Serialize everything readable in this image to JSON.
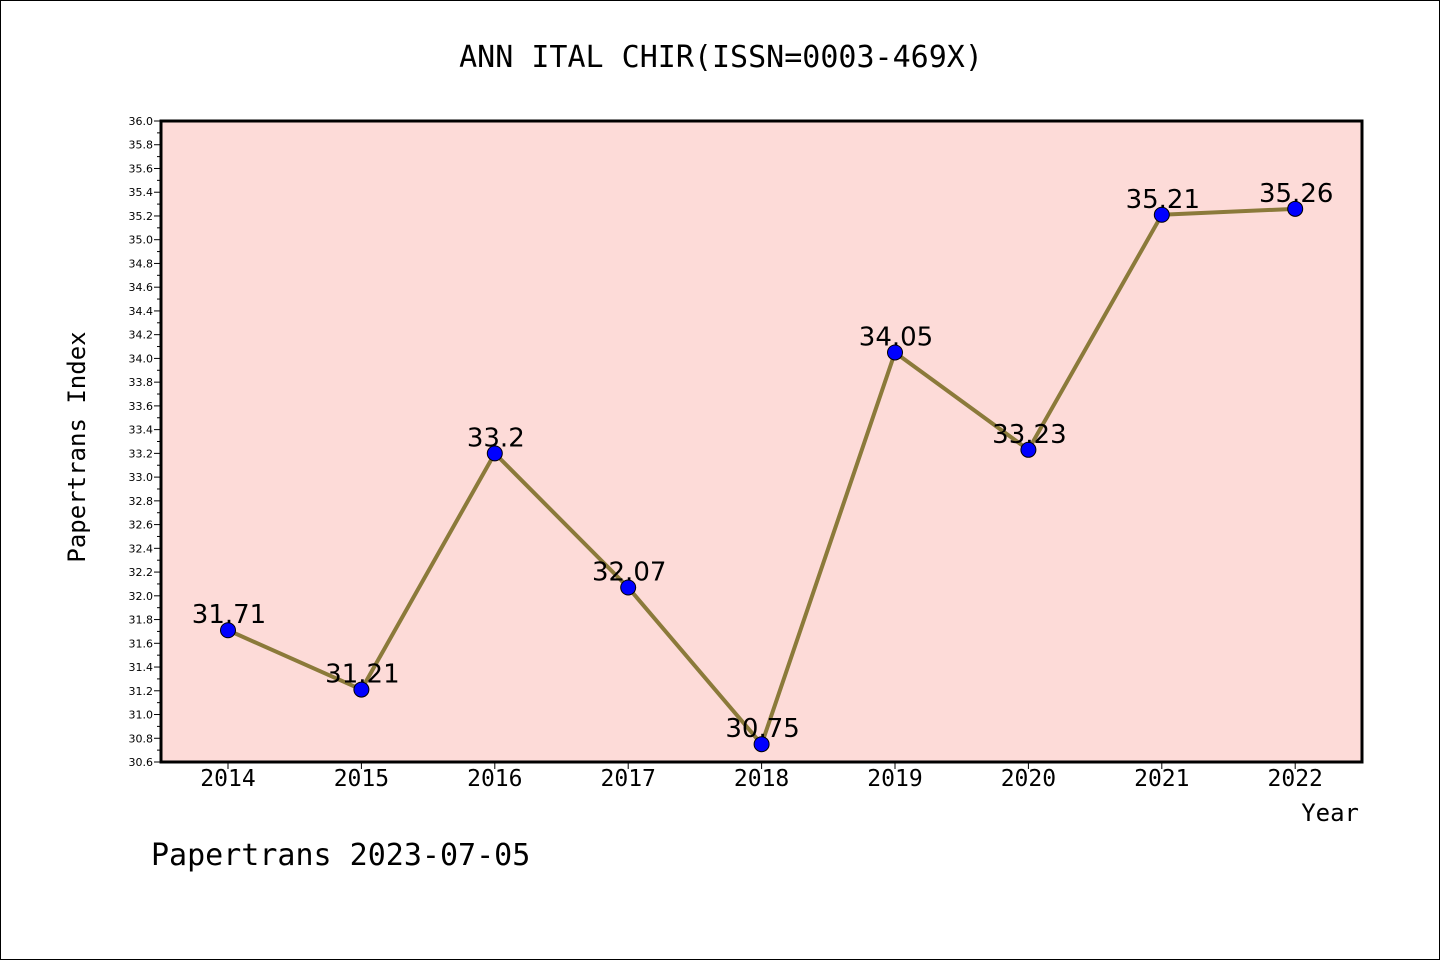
{
  "chart_data": {
    "type": "line",
    "title": "ANN ITAL CHIR(ISSN=0003-469X)",
    "xlabel": "Year",
    "ylabel": "Papertrans Index",
    "categories": [
      "2014",
      "2015",
      "2016",
      "2017",
      "2018",
      "2019",
      "2020",
      "2021",
      "2022"
    ],
    "values": [
      31.71,
      31.21,
      33.2,
      32.07,
      30.75,
      34.05,
      33.23,
      35.21,
      35.26
    ],
    "data_labels": [
      "31.71",
      "31.21",
      "33.2",
      "32.07",
      "30.75",
      "34.05",
      "33.23",
      "35.21",
      "35.26"
    ],
    "ylim": [
      30.6,
      36.0
    ],
    "yticks": [
      "30.6",
      "30.8",
      "31.0",
      "31.2",
      "31.4",
      "31.6",
      "31.8",
      "32.0",
      "32.2",
      "32.4",
      "32.6",
      "32.8",
      "33.0",
      "33.2",
      "33.4",
      "33.6",
      "33.8",
      "34.0",
      "34.2",
      "34.4",
      "34.6",
      "34.8",
      "35.0",
      "35.2",
      "35.4",
      "35.6",
      "35.8",
      "36.0"
    ],
    "plot_background": "#fddbd8",
    "line_color": "#8b7a3a",
    "marker_color": "#0000ff",
    "grid": false,
    "legend": "none"
  },
  "footer": "Papertrans 2023-07-05"
}
